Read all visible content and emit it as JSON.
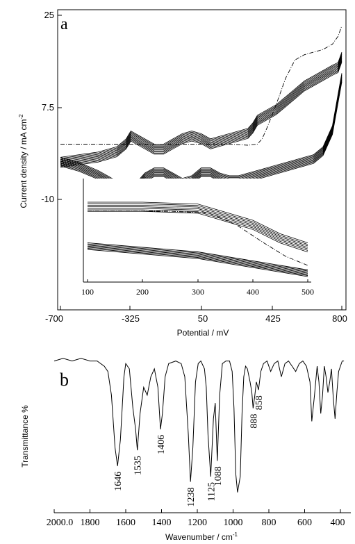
{
  "chart_data": [
    {
      "panel": "a",
      "type": "line",
      "xlabel": "Potential / mV",
      "ylabel": "Current density / mA cm",
      "ylabel_sup": "-2",
      "xticks": [
        "-700",
        "-325",
        "50",
        "425",
        "800"
      ],
      "yticks": [
        "25",
        "7.5",
        "-10"
      ],
      "xlim": [
        -700,
        800
      ],
      "ylim": [
        -28,
        27
      ],
      "series": [
        {
          "role": "upper-cycle",
          "x": [
            -700,
            -600,
            -500,
            -400,
            -350,
            -325,
            -300,
            -250,
            -200,
            -150,
            -100,
            -50,
            0,
            50,
            100,
            150,
            200,
            250,
            300,
            325,
            350,
            400,
            450,
            500,
            550,
            600,
            650,
            700,
            750,
            780,
            800
          ],
          "y": [
            -2.0,
            -1.5,
            -1.0,
            0.0,
            1.5,
            3.0,
            2.5,
            1.5,
            0.5,
            0.5,
            1.5,
            2.5,
            3.0,
            2.5,
            1.5,
            2.0,
            2.5,
            3.0,
            3.5,
            4.5,
            6.0,
            7.0,
            8.0,
            9.5,
            11.0,
            12.5,
            13.5,
            14.5,
            15.5,
            16.0,
            18.0
          ]
        },
        {
          "role": "lower-cycle",
          "x": [
            -700,
            -600,
            -500,
            -450,
            -400,
            -350,
            -325,
            -300,
            -250,
            -200,
            -150,
            -100,
            -50,
            0,
            50,
            100,
            150,
            200,
            250,
            300,
            350,
            400,
            450,
            500,
            550,
            600,
            650,
            700,
            750,
            800
          ],
          "y": [
            -2.0,
            -3.0,
            -4.5,
            -5.5,
            -6.5,
            -7.5,
            -8.0,
            -7.0,
            -5.0,
            -4.0,
            -4.0,
            -5.0,
            -6.0,
            -5.5,
            -4.0,
            -4.0,
            -5.0,
            -5.5,
            -5.5,
            -5.0,
            -4.5,
            -4.0,
            -3.5,
            -3.0,
            -2.5,
            -2.0,
            -1.5,
            0.0,
            4.0,
            14.0
          ]
        },
        {
          "role": "first-scan",
          "x": [
            -700,
            -400,
            -200,
            0,
            200,
            300,
            350,
            375,
            400,
            450,
            500,
            550,
            600,
            650,
            700,
            750,
            780,
            800
          ],
          "y": [
            0.5,
            0.5,
            0.5,
            0.5,
            0.5,
            0.3,
            0.5,
            1.5,
            3.5,
            8.0,
            13.0,
            16.5,
            17.5,
            18.0,
            18.5,
            19.5,
            21.0,
            23.0
          ]
        }
      ],
      "inset": {
        "type": "line",
        "xticks": [
          "100",
          "200",
          "300",
          "400",
          "500"
        ],
        "xlim": [
          100,
          500
        ],
        "series": [
          {
            "role": "upper-band",
            "x": [
              100,
              200,
              300,
              400,
              450,
              500
            ],
            "y": [
              0.8,
              0.8,
              0.78,
              0.6,
              0.45,
              0.35
            ]
          },
          {
            "role": "lower-band",
            "x": [
              100,
              200,
              300,
              400,
              450,
              500
            ],
            "y": [
              0.35,
              0.3,
              0.25,
              0.15,
              0.1,
              0.05
            ]
          },
          {
            "role": "first-scan",
            "x": [
              100,
              250,
              320,
              370,
              420,
              460,
              500
            ],
            "y": [
              0.7,
              0.7,
              0.68,
              0.55,
              0.35,
              0.2,
              0.1
            ]
          }
        ]
      }
    },
    {
      "panel": "b",
      "type": "line",
      "xlabel": "Wavenumber / cm",
      "xlabel_sup": "-1",
      "ylabel": "Transmittance %",
      "xticks": [
        "2000.0",
        "1800",
        "1600",
        "1400",
        "1200",
        "1000",
        "800",
        "600",
        "400"
      ],
      "xlim": [
        2000,
        380
      ],
      "peak_labels": [
        "1646",
        "1535",
        "1406",
        "1238",
        "1125",
        "1088",
        "888",
        "858"
      ],
      "peaks": [
        1646,
        1535,
        1406,
        1238,
        1125,
        1088,
        888,
        858
      ],
      "series": [
        {
          "role": "ir-spectrum",
          "x": [
            2000,
            1950,
            1900,
            1850,
            1800,
            1760,
            1720,
            1700,
            1680,
            1660,
            1646,
            1630,
            1610,
            1600,
            1580,
            1560,
            1545,
            1535,
            1520,
            1500,
            1480,
            1460,
            1440,
            1420,
            1406,
            1395,
            1380,
            1360,
            1320,
            1290,
            1270,
            1250,
            1238,
            1225,
            1210,
            1195,
            1180,
            1160,
            1150,
            1140,
            1125,
            1110,
            1100,
            1088,
            1075,
            1060,
            1040,
            1020,
            1005,
            995,
            985,
            975,
            960,
            950,
            940,
            930,
            920,
            905,
            895,
            888,
            880,
            870,
            858,
            845,
            830,
            810,
            790,
            770,
            750,
            730,
            710,
            690,
            670,
            650,
            630,
            610,
            590,
            570,
            560,
            545,
            530,
            520,
            510,
            500,
            490,
            480,
            470,
            460,
            450,
            440,
            430,
            420,
            410,
            400,
            390,
            380
          ],
          "y": [
            2,
            1,
            2,
            1,
            2,
            2,
            4,
            6,
            15,
            35,
            42,
            32,
            8,
            3,
            5,
            20,
            28,
            36,
            22,
            12,
            15,
            8,
            5,
            12,
            28,
            22,
            8,
            3,
            2,
            3,
            8,
            30,
            48,
            35,
            10,
            3,
            2,
            5,
            12,
            30,
            46,
            24,
            18,
            40,
            15,
            3,
            2,
            2,
            6,
            20,
            45,
            52,
            46,
            22,
            8,
            4,
            5,
            10,
            14,
            20,
            16,
            10,
            13,
            6,
            3,
            2,
            6,
            3,
            2,
            8,
            3,
            2,
            4,
            6,
            3,
            2,
            4,
            10,
            25,
            15,
            4,
            10,
            22,
            15,
            4,
            8,
            14,
            10,
            5,
            16,
            24,
            14,
            6,
            4,
            2,
            2
          ]
        }
      ]
    }
  ]
}
